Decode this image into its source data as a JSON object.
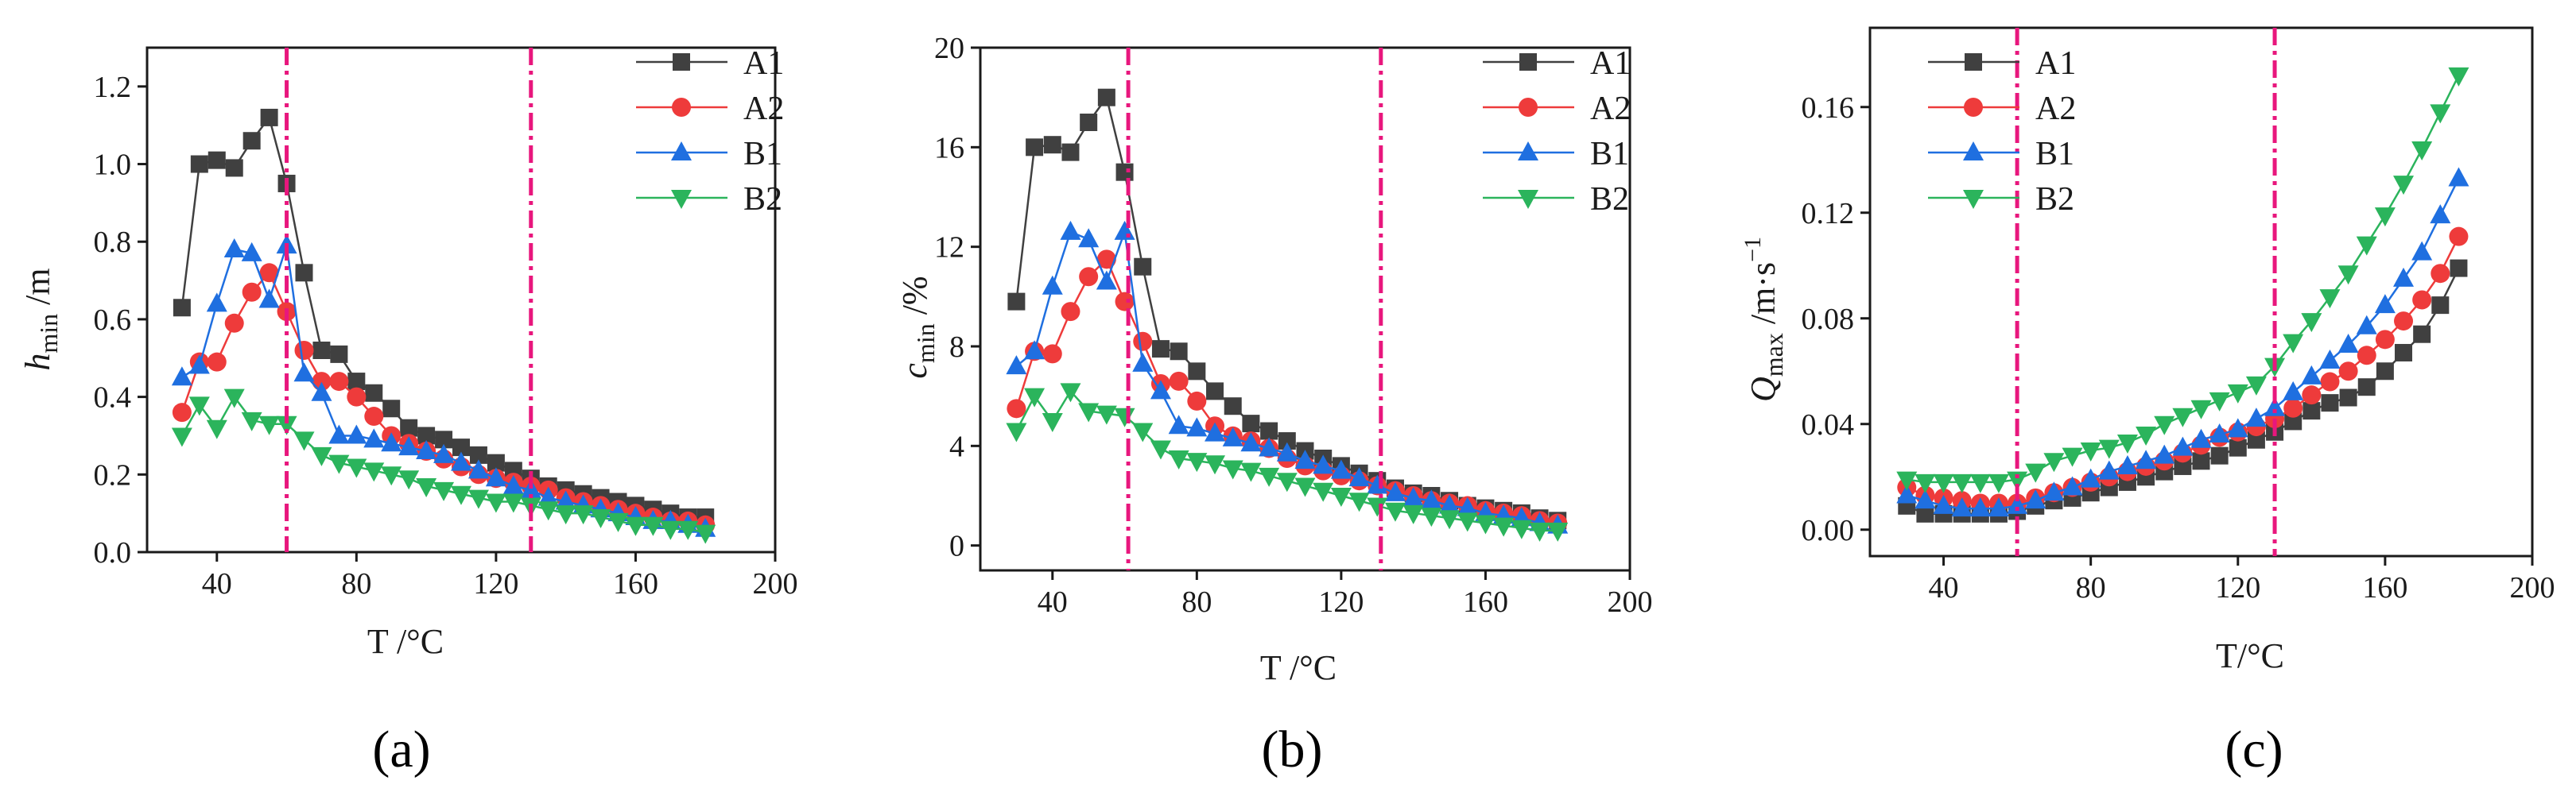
{
  "colors": {
    "A1": "#404040",
    "A2": "#ee3b3b",
    "B1": "#1f6fe0",
    "B2": "#2bb45c",
    "vline": "#e8177d"
  },
  "chart_data": [
    {
      "type": "line",
      "panel_label": "(a)",
      "ylabel_sym": "h",
      "ylabel_sub": "min",
      "ylabel_unit": " /m",
      "ylabel_sup": "",
      "xlabel": "T /°C",
      "xlim": [
        20,
        200
      ],
      "ylim": [
        0,
        1.3
      ],
      "xticks": [
        40,
        80,
        120,
        160,
        200
      ],
      "xtick_labels": [
        "40",
        "80",
        "120",
        "160",
        "200"
      ],
      "yticks": [
        0,
        0.2,
        0.4,
        0.6,
        0.8,
        1.0,
        1.2
      ],
      "ytick_labels": [
        "0.0",
        "0.2",
        "0.4",
        "0.6",
        "0.8",
        "1.0",
        "1.2"
      ],
      "vlines": [
        60,
        130
      ],
      "legend_position": "top-right",
      "x": [
        30,
        35,
        40,
        45,
        50,
        55,
        60,
        65,
        70,
        75,
        80,
        85,
        90,
        95,
        100,
        105,
        110,
        115,
        120,
        125,
        130,
        135,
        140,
        145,
        150,
        155,
        160,
        165,
        170,
        175,
        180
      ],
      "series": [
        {
          "name": "A1",
          "marker": "square",
          "values": [
            0.63,
            1.0,
            1.01,
            0.99,
            1.06,
            1.12,
            0.95,
            0.72,
            0.52,
            0.51,
            0.44,
            0.41,
            0.37,
            0.32,
            0.3,
            0.29,
            0.27,
            0.25,
            0.23,
            0.21,
            0.19,
            0.17,
            0.16,
            0.15,
            0.14,
            0.13,
            0.12,
            0.11,
            0.1,
            0.09,
            0.09
          ]
        },
        {
          "name": "A2",
          "marker": "circle",
          "values": [
            0.36,
            0.49,
            0.49,
            0.59,
            0.67,
            0.72,
            0.62,
            0.52,
            0.44,
            0.44,
            0.4,
            0.35,
            0.3,
            0.28,
            0.26,
            0.24,
            0.22,
            0.2,
            0.19,
            0.18,
            0.17,
            0.16,
            0.14,
            0.13,
            0.12,
            0.11,
            0.1,
            0.09,
            0.08,
            0.08,
            0.07
          ]
        },
        {
          "name": "B1",
          "marker": "triangle-up",
          "values": [
            0.45,
            0.48,
            0.64,
            0.78,
            0.77,
            0.65,
            0.79,
            0.46,
            0.41,
            0.3,
            0.3,
            0.29,
            0.28,
            0.27,
            0.26,
            0.25,
            0.23,
            0.21,
            0.19,
            0.17,
            0.16,
            0.14,
            0.13,
            0.12,
            0.11,
            0.1,
            0.09,
            0.08,
            0.08,
            0.07,
            0.06
          ]
        },
        {
          "name": "B2",
          "marker": "triangle-down",
          "values": [
            0.3,
            0.38,
            0.32,
            0.4,
            0.34,
            0.33,
            0.33,
            0.29,
            0.25,
            0.23,
            0.22,
            0.21,
            0.2,
            0.19,
            0.17,
            0.16,
            0.15,
            0.14,
            0.13,
            0.13,
            0.12,
            0.11,
            0.1,
            0.1,
            0.09,
            0.08,
            0.07,
            0.07,
            0.06,
            0.06,
            0.05
          ]
        }
      ]
    },
    {
      "type": "line",
      "panel_label": "(b)",
      "ylabel_sym": "c",
      "ylabel_sub": "min",
      "ylabel_unit": " /%",
      "ylabel_sup": "",
      "xlabel": "T /°C",
      "xlim": [
        20,
        200
      ],
      "ylim": [
        -1,
        20
      ],
      "xticks": [
        40,
        80,
        120,
        160,
        200
      ],
      "xtick_labels": [
        "40",
        "80",
        "120",
        "160",
        "200"
      ],
      "yticks": [
        0,
        4,
        8,
        12,
        16,
        20
      ],
      "ytick_labels": [
        "0",
        "4",
        "8",
        "12",
        "16",
        "20"
      ],
      "vlines": [
        61,
        131
      ],
      "legend_position": "top-right",
      "x": [
        30,
        35,
        40,
        45,
        50,
        55,
        60,
        65,
        70,
        75,
        80,
        85,
        90,
        95,
        100,
        105,
        110,
        115,
        120,
        125,
        130,
        135,
        140,
        145,
        150,
        155,
        160,
        165,
        170,
        175,
        180
      ],
      "series": [
        {
          "name": "A1",
          "marker": "square",
          "values": [
            9.8,
            16.0,
            16.1,
            15.8,
            17.0,
            18.0,
            15.0,
            11.2,
            7.9,
            7.8,
            7.0,
            6.2,
            5.6,
            4.9,
            4.6,
            4.2,
            3.8,
            3.5,
            3.2,
            2.9,
            2.6,
            2.3,
            2.1,
            2.0,
            1.8,
            1.6,
            1.5,
            1.4,
            1.3,
            1.1,
            1.0
          ]
        },
        {
          "name": "A2",
          "marker": "circle",
          "values": [
            5.5,
            7.8,
            7.7,
            9.4,
            10.8,
            11.5,
            9.8,
            8.2,
            6.5,
            6.6,
            5.8,
            4.8,
            4.4,
            4.2,
            3.9,
            3.5,
            3.2,
            3.0,
            2.8,
            2.6,
            2.4,
            2.2,
            2.0,
            1.8,
            1.7,
            1.6,
            1.4,
            1.3,
            1.2,
            1.0,
            0.9
          ]
        },
        {
          "name": "B1",
          "marker": "triangle-up",
          "values": [
            7.2,
            7.8,
            10.4,
            12.6,
            12.3,
            10.6,
            12.6,
            7.3,
            6.2,
            4.8,
            4.7,
            4.5,
            4.3,
            4.1,
            3.9,
            3.7,
            3.4,
            3.2,
            3.0,
            2.7,
            2.4,
            2.1,
            1.9,
            1.8,
            1.6,
            1.5,
            1.3,
            1.2,
            1.1,
            0.9,
            0.8
          ]
        },
        {
          "name": "B2",
          "marker": "triangle-down",
          "values": [
            4.6,
            6.0,
            5.0,
            6.2,
            5.4,
            5.3,
            5.2,
            4.6,
            3.9,
            3.5,
            3.4,
            3.3,
            3.1,
            3.0,
            2.8,
            2.6,
            2.4,
            2.2,
            2.0,
            1.8,
            1.6,
            1.4,
            1.3,
            1.2,
            1.1,
            1.0,
            0.9,
            0.8,
            0.7,
            0.6,
            0.6
          ]
        }
      ]
    },
    {
      "type": "line",
      "panel_label": "(c)",
      "ylabel_sym": "Q",
      "ylabel_sub": "max",
      "ylabel_unit": " /m·s",
      "ylabel_sup": "−1",
      "xlabel": "T/°C",
      "xlim": [
        20,
        200
      ],
      "ylim": [
        -0.01,
        0.19
      ],
      "xticks": [
        40,
        80,
        120,
        160,
        200
      ],
      "xtick_labels": [
        "40",
        "80",
        "120",
        "160",
        "200"
      ],
      "yticks": [
        0,
        0.04,
        0.08,
        0.12,
        0.16
      ],
      "ytick_labels": [
        "0.00",
        "0.04",
        "0.08",
        "0.12",
        "0.16"
      ],
      "vlines": [
        60,
        130
      ],
      "legend_position": "top-left",
      "x": [
        30,
        35,
        40,
        45,
        50,
        55,
        60,
        65,
        70,
        75,
        80,
        85,
        90,
        95,
        100,
        105,
        110,
        115,
        120,
        125,
        130,
        135,
        140,
        145,
        150,
        155,
        160,
        165,
        170,
        175,
        180
      ],
      "series": [
        {
          "name": "A1",
          "marker": "square",
          "values": [
            0.009,
            0.006,
            0.006,
            0.006,
            0.006,
            0.006,
            0.007,
            0.009,
            0.011,
            0.012,
            0.014,
            0.016,
            0.018,
            0.02,
            0.022,
            0.024,
            0.026,
            0.028,
            0.031,
            0.034,
            0.037,
            0.041,
            0.045,
            0.048,
            0.05,
            0.054,
            0.06,
            0.067,
            0.074,
            0.085,
            0.099
          ]
        },
        {
          "name": "A2",
          "marker": "circle",
          "values": [
            0.016,
            0.013,
            0.012,
            0.011,
            0.01,
            0.01,
            0.01,
            0.012,
            0.014,
            0.016,
            0.018,
            0.02,
            0.022,
            0.024,
            0.026,
            0.029,
            0.032,
            0.035,
            0.037,
            0.039,
            0.042,
            0.046,
            0.051,
            0.056,
            0.06,
            0.066,
            0.072,
            0.079,
            0.087,
            0.097,
            0.111
          ]
        },
        {
          "name": "B1",
          "marker": "triangle-up",
          "values": [
            0.013,
            0.011,
            0.009,
            0.008,
            0.008,
            0.008,
            0.009,
            0.011,
            0.014,
            0.016,
            0.019,
            0.022,
            0.024,
            0.026,
            0.028,
            0.031,
            0.034,
            0.036,
            0.038,
            0.042,
            0.046,
            0.052,
            0.058,
            0.064,
            0.07,
            0.077,
            0.085,
            0.095,
            0.105,
            0.119,
            0.133
          ]
        },
        {
          "name": "B2",
          "marker": "triangle-down",
          "values": [
            0.019,
            0.018,
            0.018,
            0.018,
            0.018,
            0.018,
            0.019,
            0.022,
            0.026,
            0.028,
            0.03,
            0.031,
            0.033,
            0.036,
            0.04,
            0.043,
            0.046,
            0.049,
            0.052,
            0.055,
            0.062,
            0.071,
            0.079,
            0.088,
            0.097,
            0.108,
            0.119,
            0.131,
            0.144,
            0.158,
            0.172
          ]
        }
      ]
    }
  ]
}
